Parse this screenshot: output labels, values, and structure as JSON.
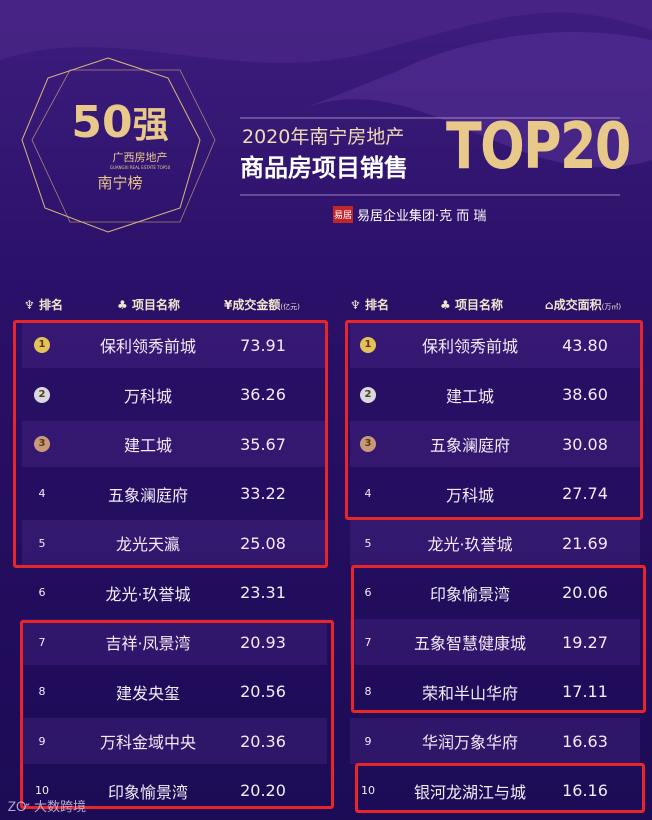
{
  "badge": {
    "number": "50",
    "strong": "强",
    "sub_cn": "广西房地产",
    "sub_en": "GUANGXI REAL ESTATE TOP50",
    "city": "南宁榜"
  },
  "title": {
    "line1": "2020年南宁房地产",
    "line2": "商品房项目销售",
    "top": "TOP20",
    "sponsor_seal": "易居",
    "sponsor": "易居企业集团·克 而 瑞"
  },
  "colors": {
    "bg": "#1c0b55",
    "gold": "#e8c98a",
    "highlight": "#e8262a"
  },
  "left": {
    "headers": {
      "rank": "排名",
      "name": "项目名称",
      "value": "成交金额",
      "unit": "(亿元)"
    },
    "rows": [
      {
        "rank": "1",
        "name": "保利领秀前城",
        "value": "73.91"
      },
      {
        "rank": "2",
        "name": "万科城",
        "value": "36.26"
      },
      {
        "rank": "3",
        "name": "建工城",
        "value": "35.67"
      },
      {
        "rank": "4",
        "name": "五象澜庭府",
        "value": "33.22"
      },
      {
        "rank": "5",
        "name": "龙光天瀛",
        "value": "25.08"
      },
      {
        "rank": "6",
        "name": "龙光·玖誉城",
        "value": "23.31"
      },
      {
        "rank": "7",
        "name": "吉祥·凤景湾",
        "value": "20.93"
      },
      {
        "rank": "8",
        "name": "建发央玺",
        "value": "20.56"
      },
      {
        "rank": "9",
        "name": "万科金域中央",
        "value": "20.36"
      },
      {
        "rank": "10",
        "name": "印象愉景湾",
        "value": "20.20"
      }
    ]
  },
  "right": {
    "headers": {
      "rank": "排名",
      "name": "项目名称",
      "value": "成交面积",
      "unit": "(万㎡)"
    },
    "rows": [
      {
        "rank": "1",
        "name": "保利领秀前城",
        "value": "43.80"
      },
      {
        "rank": "2",
        "name": "建工城",
        "value": "38.60"
      },
      {
        "rank": "3",
        "name": "五象澜庭府",
        "value": "30.08"
      },
      {
        "rank": "4",
        "name": "万科城",
        "value": "27.74"
      },
      {
        "rank": "5",
        "name": "龙光·玖誉城",
        "value": "21.69"
      },
      {
        "rank": "6",
        "name": "印象愉景湾",
        "value": "20.06"
      },
      {
        "rank": "7",
        "name": "五象智慧健康城",
        "value": "19.27"
      },
      {
        "rank": "8",
        "name": "荣和半山华府",
        "value": "17.11"
      },
      {
        "rank": "9",
        "name": "华润万象华府",
        "value": "16.63"
      },
      {
        "rank": "10",
        "name": "银河龙湖江与城",
        "value": "16.16"
      }
    ]
  },
  "watermark": "大数跨境"
}
